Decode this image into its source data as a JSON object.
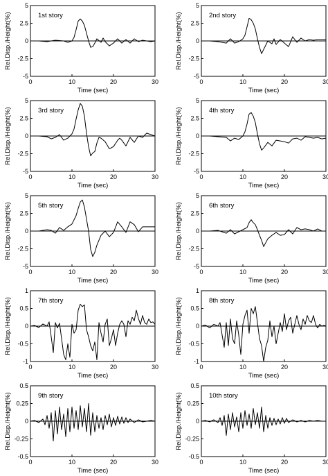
{
  "chart_data": [
    {
      "type": "line",
      "title": "1st story",
      "xlabel": "Time (sec)",
      "ylabel": "Rel.Disp./Height(%)",
      "xlim": [
        0,
        30
      ],
      "ylim": [
        -5,
        5
      ],
      "xticks": [
        "0",
        "10",
        "20",
        "30"
      ],
      "yticks": [
        "5",
        "2.5",
        "0",
        "-2.5",
        "-5"
      ],
      "x": [
        0,
        2,
        4,
        6,
        8,
        9,
        10,
        10.5,
        11,
        11.5,
        12,
        12.5,
        13,
        13.5,
        14,
        14.5,
        15,
        15.5,
        16,
        17,
        17.5,
        18,
        19,
        20,
        21,
        22,
        23,
        24,
        25,
        26,
        27,
        28,
        29,
        30
      ],
      "y": [
        0,
        0,
        -0.1,
        0.1,
        0,
        -0.2,
        0,
        0.5,
        1.6,
        2.8,
        3.1,
        2.8,
        2.2,
        1.1,
        0,
        -0.9,
        -0.8,
        -0.3,
        0.3,
        -0.2,
        0.4,
        -0.1,
        -0.7,
        -0.3,
        0.3,
        -0.3,
        0.2,
        -0.3,
        0.3,
        -0.1,
        0.1,
        0,
        -0.1,
        0
      ]
    },
    {
      "type": "line",
      "title": "2nd story",
      "xlabel": "Time (sec)",
      "ylabel": "Rel.Disp./Height(%)",
      "xlim": [
        0,
        30
      ],
      "ylim": [
        -5,
        5
      ],
      "xticks": [
        "0",
        "10",
        "20",
        "30"
      ],
      "yticks": [
        "5",
        "2.5",
        "0",
        "-2.5",
        "-5"
      ],
      "x": [
        0,
        2,
        4,
        6,
        7,
        8,
        9,
        10,
        10.5,
        11,
        11.5,
        12,
        12.5,
        13,
        13.5,
        14,
        14.5,
        15,
        15.5,
        16,
        17,
        17.5,
        18,
        19,
        20,
        21,
        22,
        23,
        24,
        25,
        26,
        27,
        28,
        29,
        30
      ],
      "y": [
        0,
        0,
        -0.1,
        -0.3,
        0.3,
        -0.3,
        -0.1,
        0.3,
        0.8,
        2.0,
        3.2,
        3.0,
        2.5,
        1.7,
        0.3,
        -0.9,
        -1.8,
        -1.2,
        -0.6,
        0,
        -0.4,
        0.3,
        -0.5,
        0.2,
        -0.3,
        -0.8,
        0.6,
        -0.2,
        0.4,
        0,
        0.2,
        0.1,
        0.2,
        0.2,
        0.2
      ]
    },
    {
      "type": "line",
      "title": "3rd story",
      "xlabel": "Time (sec)",
      "ylabel": "Rel.Disp./Height(%)",
      "xlim": [
        0,
        30
      ],
      "ylim": [
        -5,
        5
      ],
      "xticks": [
        "0",
        "10",
        "20",
        "30"
      ],
      "yticks": [
        "5",
        "2.5",
        "0",
        "-2.5",
        "-5"
      ],
      "x": [
        0,
        2,
        4,
        5,
        6,
        7,
        8,
        9,
        10,
        10.5,
        11,
        11.5,
        12,
        12.5,
        13,
        13.5,
        14,
        14.5,
        15,
        15.5,
        16,
        16.5,
        17,
        18,
        19,
        20,
        21,
        21.5,
        22,
        23,
        24,
        25,
        26,
        27,
        28,
        29,
        30
      ],
      "y": [
        0,
        0,
        -0.1,
        -0.4,
        -0.2,
        0.2,
        -0.6,
        -0.3,
        0.3,
        1.0,
        2.4,
        3.7,
        4.6,
        4.2,
        2.8,
        0.4,
        -1.5,
        -2.8,
        -2.4,
        -2.2,
        -1.0,
        -0.2,
        -0.3,
        -0.8,
        -1.8,
        -1.5,
        -0.6,
        -0.3,
        -0.6,
        -1.4,
        -0.2,
        -0.9,
        0,
        -0.2,
        0.4,
        0.2,
        0
      ]
    },
    {
      "type": "line",
      "title": "4th story",
      "xlabel": "Time (sec)",
      "ylabel": "Rel.Disp./Height(%)",
      "xlim": [
        0,
        30
      ],
      "ylim": [
        -5,
        5
      ],
      "xticks": [
        "0",
        "10",
        "20",
        "30"
      ],
      "yticks": [
        "5",
        "2.5",
        "0",
        "-2.5",
        "-5"
      ],
      "x": [
        0,
        2,
        4,
        6,
        7,
        8,
        9,
        10,
        10.5,
        11,
        11.5,
        12,
        12.5,
        13,
        13.5,
        14,
        14.5,
        15,
        16,
        17,
        18,
        19,
        20,
        21,
        22,
        23,
        24,
        25,
        26,
        27,
        28,
        29,
        30
      ],
      "y": [
        0,
        0,
        -0.1,
        -0.2,
        -0.7,
        -0.3,
        -0.5,
        0,
        0.6,
        1.7,
        3.1,
        3.3,
        2.8,
        1.9,
        0.3,
        -1.1,
        -2.0,
        -1.7,
        -0.9,
        -1.4,
        -0.6,
        -0.7,
        -0.8,
        -1.0,
        -0.4,
        -0.3,
        -0.6,
        -0.1,
        -0.2,
        -0.3,
        -0.2,
        -0.4,
        -0.3
      ]
    },
    {
      "type": "line",
      "title": "5th story",
      "xlabel": "Time (sec)",
      "ylabel": "Rel.Disp./Height(%)",
      "xlim": [
        0,
        30
      ],
      "ylim": [
        -5,
        5
      ],
      "xticks": [
        "0",
        "10",
        "20",
        "30"
      ],
      "yticks": [
        "5",
        "2.5",
        "0",
        "-2.5",
        "-5"
      ],
      "x": [
        0,
        2,
        4,
        5,
        6,
        7,
        8,
        9,
        10,
        11,
        11.5,
        12,
        12.5,
        13,
        13.5,
        14,
        14.5,
        15,
        15.5,
        16,
        17,
        18,
        19,
        20,
        21,
        22,
        23,
        24,
        25,
        26,
        27,
        28,
        29,
        30
      ],
      "y": [
        0,
        0,
        0.2,
        0.1,
        -0.3,
        0.5,
        0.1,
        0.6,
        1.0,
        2.2,
        3.2,
        4.1,
        4.4,
        3.4,
        1.7,
        0,
        -2.6,
        -3.6,
        -3.0,
        -2.0,
        -0.6,
        0,
        -0.8,
        -0.2,
        1.3,
        0.6,
        -0.2,
        1.3,
        0.9,
        -0.1,
        0.6,
        0.6,
        0.6,
        0.6
      ]
    },
    {
      "type": "line",
      "title": "6th story",
      "xlabel": "Time (sec)",
      "ylabel": "Rel.Disp./Height(%)",
      "xlim": [
        0,
        30
      ],
      "ylim": [
        -5,
        5
      ],
      "xticks": [
        "0",
        "10",
        "20",
        "30"
      ],
      "yticks": [
        "5",
        "2.5",
        "0",
        "-2.5",
        "-5"
      ],
      "x": [
        0,
        2,
        4,
        6,
        7,
        8,
        9,
        10,
        11,
        11.5,
        12,
        12.5,
        13,
        13.5,
        14,
        14.5,
        15,
        16,
        17,
        18,
        19,
        20,
        21,
        22,
        23,
        24,
        25,
        26,
        27,
        28,
        29,
        30
      ],
      "y": [
        0,
        0,
        0.1,
        -0.3,
        0.2,
        -0.4,
        -0.1,
        0.2,
        0.5,
        1.2,
        1.6,
        1.2,
        0.9,
        0.2,
        -0.6,
        -1.3,
        -2.2,
        -1.1,
        -0.6,
        -0.2,
        -0.6,
        -0.5,
        0.2,
        -0.4,
        0.5,
        0.2,
        0.3,
        0.2,
        0,
        0.3,
        0,
        0
      ]
    },
    {
      "type": "line",
      "title": "7th story",
      "xlabel": "Time (sec)",
      "ylabel": "Rel.Disp./Height(%)",
      "xlim": [
        0,
        30
      ],
      "ylim": [
        -1,
        1
      ],
      "xticks": [
        "0",
        "10",
        "20",
        "30"
      ],
      "yticks": [
        "1",
        "0.5",
        "0",
        "-0.5",
        "-1"
      ],
      "x": [
        0,
        1,
        2,
        3,
        4,
        4.5,
        5,
        5.5,
        6,
        6.5,
        7,
        7.5,
        8,
        8.5,
        9,
        9.5,
        10,
        10.5,
        11,
        11.5,
        12,
        12.5,
        13,
        13.5,
        14,
        14.5,
        15,
        15.5,
        16,
        16.5,
        17,
        17.5,
        18,
        18.5,
        19,
        19.5,
        20,
        20.5,
        21,
        21.5,
        22,
        22.5,
        23,
        23.5,
        24,
        24.5,
        25,
        25.5,
        26,
        26.5,
        27,
        27.5,
        28,
        28.5,
        29,
        29.5,
        30
      ],
      "y": [
        0,
        0.02,
        -0.04,
        0.06,
        0,
        0.12,
        -0.3,
        -0.75,
        0.1,
        -0.05,
        0.08,
        -0.35,
        -0.8,
        -0.95,
        -0.5,
        -0.88,
        0.05,
        -0.2,
        -0.1,
        0.45,
        0.62,
        0.55,
        0.6,
        -0.1,
        -0.3,
        -0.55,
        -0.7,
        -0.45,
        -0.95,
        0.1,
        -0.2,
        -0.45,
        0.05,
        0.2,
        -0.55,
        -0.35,
        -0.1,
        -0.55,
        -0.2,
        0.05,
        0.15,
        0.05,
        -0.3,
        0.15,
        0.05,
        0.25,
        0.15,
        0.45,
        0.22,
        0.05,
        0.3,
        0.1,
        0.05,
        0.2,
        0.1,
        0.12,
        0.05
      ]
    },
    {
      "type": "line",
      "title": "8th story",
      "xlabel": "Time (sec)",
      "ylabel": "Rel.Disp./Height(%)",
      "xlim": [
        0,
        30
      ],
      "ylim": [
        -1,
        1
      ],
      "xticks": [
        "0",
        "10",
        "20",
        "30"
      ],
      "yticks": [
        "1",
        "0.5",
        "0",
        "-0.5",
        "-1"
      ],
      "x": [
        0,
        1,
        2,
        3,
        4,
        4.5,
        5,
        5.5,
        6,
        6.5,
        7,
        7.5,
        8,
        8.5,
        9,
        9.5,
        10,
        10.5,
        11,
        11.5,
        12,
        12.5,
        13,
        13.5,
        14,
        14.5,
        15,
        15.5,
        16,
        16.5,
        17,
        17.5,
        18,
        18.5,
        19,
        19.5,
        20,
        20.5,
        21,
        21.5,
        22,
        22.5,
        23,
        23.5,
        24,
        24.5,
        25,
        25.5,
        26,
        26.5,
        27,
        27.5,
        28,
        28.5,
        29,
        29.5,
        30
      ],
      "y": [
        0,
        0.03,
        -0.05,
        0.05,
        0,
        0.1,
        -0.25,
        -0.6,
        0.1,
        -0.55,
        0.2,
        -0.35,
        -0.5,
        0.15,
        -0.25,
        -0.8,
        0.05,
        0.3,
        0.45,
        -0.2,
        0.5,
        0.35,
        0.55,
        0.1,
        -0.35,
        -0.55,
        -1.0,
        -0.6,
        -0.4,
        0.15,
        -0.3,
        0,
        -0.5,
        -0.2,
        0.1,
        -0.15,
        0.35,
        -0.1,
        0.15,
        0.25,
        -0.2,
        0.05,
        0.3,
        0.05,
        -0.1,
        0.2,
        0.05,
        0.3,
        0.15,
        0.1,
        0.3,
        0.05,
        -0.05,
        0.05,
        0,
        0.02,
        0
      ]
    },
    {
      "type": "line",
      "title": "9th story",
      "xlabel": "Time (sec)",
      "ylabel": "Rel.Disp./Height(%)",
      "xlim": [
        0,
        30
      ],
      "ylim": [
        -0.5,
        0.5
      ],
      "xticks": [
        "0",
        "10",
        "20",
        "30"
      ],
      "yticks": [
        "0.5",
        "0.25",
        "0",
        "-0.25",
        "-0.5"
      ],
      "x": [
        0,
        1,
        2,
        3,
        3.5,
        4,
        4.5,
        5,
        5.5,
        6,
        6.5,
        7,
        7.5,
        8,
        8.5,
        9,
        9.5,
        10,
        10.5,
        11,
        11.5,
        12,
        12.5,
        13,
        13.5,
        14,
        14.5,
        15,
        15.5,
        16,
        16.5,
        17,
        17.5,
        18,
        18.5,
        19,
        19.5,
        20,
        20.5,
        21,
        21.5,
        22,
        22.5,
        23,
        23.5,
        24,
        25,
        26,
        27,
        28,
        29,
        30
      ],
      "y": [
        0,
        0.01,
        -0.02,
        0.03,
        -0.05,
        0.08,
        -0.1,
        0.12,
        -0.28,
        0.15,
        -0.18,
        0.2,
        -0.12,
        0.1,
        -0.22,
        0.18,
        -0.15,
        0.2,
        -0.1,
        0.15,
        -0.12,
        0.22,
        -0.08,
        0.18,
        -0.15,
        0.25,
        -0.2,
        0.12,
        -0.15,
        0.08,
        -0.1,
        0.05,
        -0.12,
        0.08,
        -0.05,
        0.1,
        -0.08,
        0.05,
        -0.06,
        0.07,
        -0.04,
        0.06,
        -0.03,
        0.05,
        -0.02,
        0.03,
        -0.02,
        0.02,
        -0.01,
        0,
        0.01,
        0
      ]
    },
    {
      "type": "line",
      "title": "10th story",
      "xlabel": "Time (sec)",
      "ylabel": "Rel.Disp./Height(%)",
      "xlim": [
        0,
        30
      ],
      "ylim": [
        -0.5,
        0.5
      ],
      "xticks": [
        "0",
        "10",
        "20",
        "30"
      ],
      "yticks": [
        "0.5",
        "0.25",
        "0",
        "-0.25",
        "-0.5"
      ],
      "x": [
        0,
        1,
        2,
        3,
        4,
        4.5,
        5,
        5.5,
        6,
        6.5,
        7,
        7.5,
        8,
        8.5,
        9,
        9.5,
        10,
        10.5,
        11,
        11.5,
        12,
        12.5,
        13,
        13.5,
        14,
        14.5,
        15,
        15.5,
        16,
        16.5,
        17,
        17.5,
        18,
        18.5,
        19,
        19.5,
        20,
        20.5,
        21,
        22,
        23,
        24,
        25,
        26,
        27,
        28,
        29,
        30
      ],
      "y": [
        0,
        0.01,
        -0.01,
        0.02,
        -0.02,
        0.05,
        -0.06,
        0.08,
        -0.2,
        0.1,
        -0.12,
        0.12,
        -0.08,
        0.06,
        -0.15,
        0.12,
        -0.1,
        0.15,
        -0.06,
        0.1,
        -0.1,
        0.18,
        -0.05,
        0.12,
        -0.1,
        0.2,
        -0.15,
        0.08,
        -0.1,
        0.05,
        -0.06,
        0.04,
        -0.05,
        0.03,
        -0.04,
        0.05,
        -0.03,
        0.04,
        -0.02,
        0.02,
        -0.01,
        0.01,
        -0.01,
        0.01,
        0,
        0.01,
        0,
        0
      ]
    }
  ]
}
